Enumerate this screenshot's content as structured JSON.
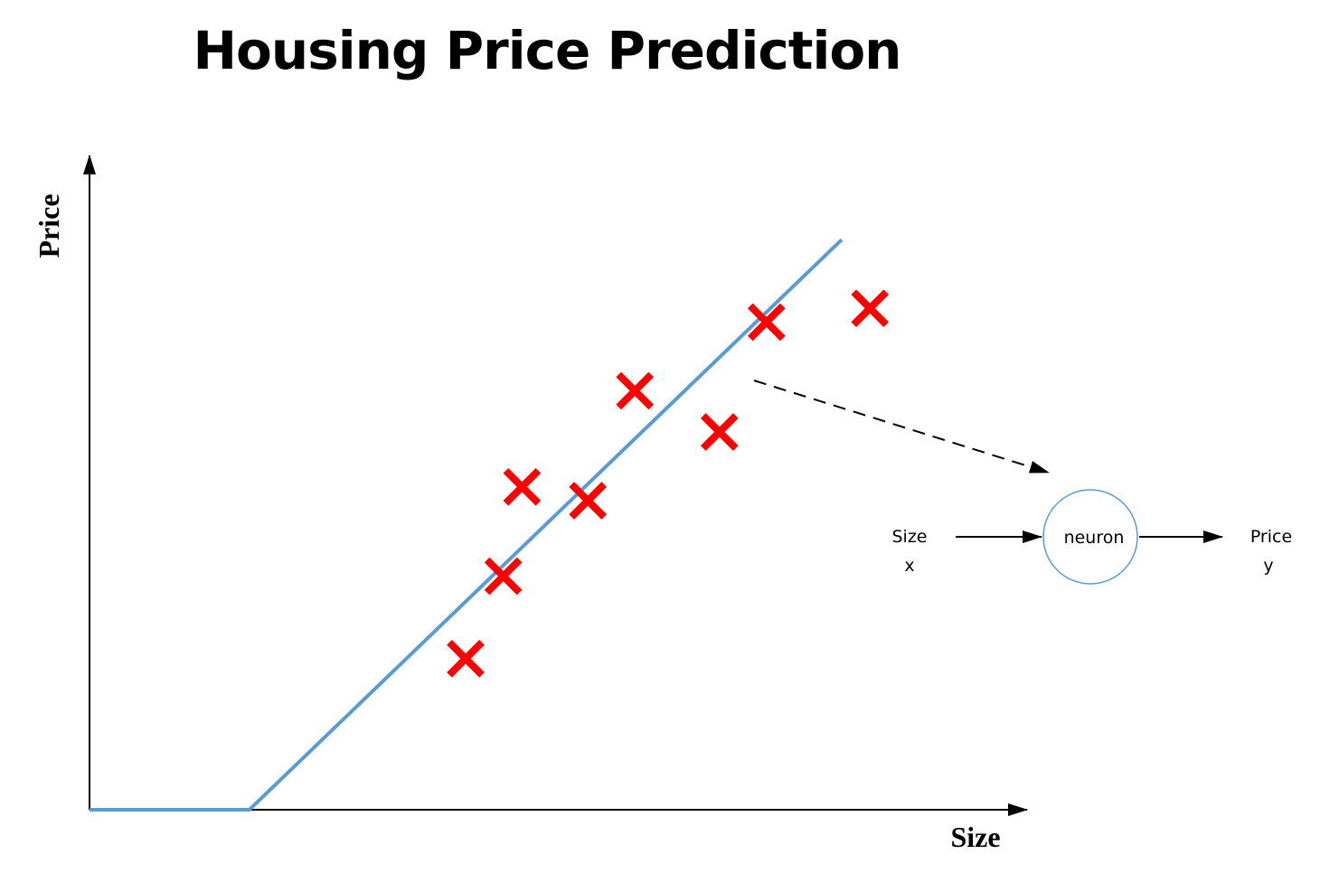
{
  "title": "Housing Price Prediction",
  "chart": {
    "y_axis_label": "Price",
    "x_axis_label": "Size",
    "line_color": "#5b9bd5",
    "marker_color": "#ff0000",
    "marker": "x",
    "points": [
      {
        "x": 0.4,
        "y": 0.22
      },
      {
        "x": 0.44,
        "y": 0.34
      },
      {
        "x": 0.46,
        "y": 0.47
      },
      {
        "x": 0.53,
        "y": 0.45
      },
      {
        "x": 0.58,
        "y": 0.61
      },
      {
        "x": 0.67,
        "y": 0.55
      },
      {
        "x": 0.72,
        "y": 0.71
      },
      {
        "x": 0.83,
        "y": 0.73
      }
    ],
    "fit_line": {
      "knee_x": 0.17,
      "end_x": 0.8,
      "end_y": 0.83
    }
  },
  "neuron": {
    "label": "neuron",
    "input_label": "Size",
    "input_var": "x",
    "output_label": "Price",
    "output_var": "y",
    "circle_stroke": "#5b9bd5"
  }
}
